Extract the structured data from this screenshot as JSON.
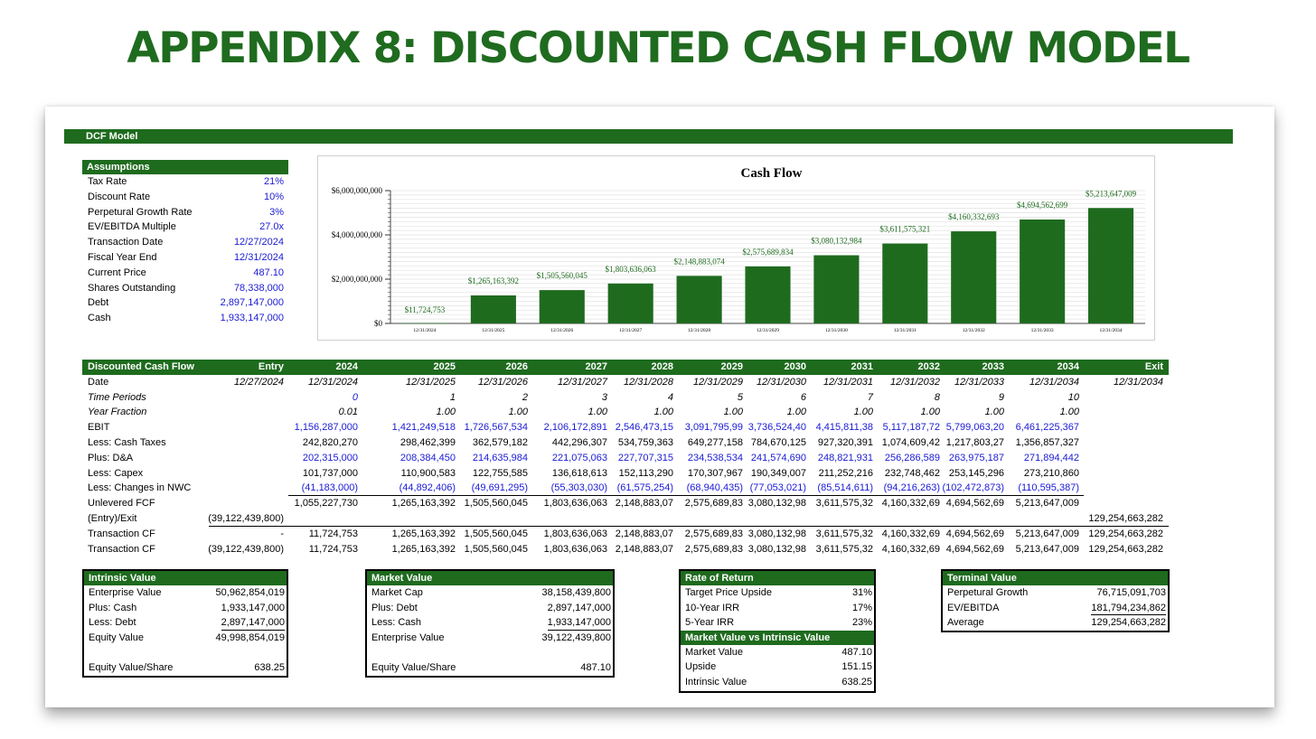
{
  "title": "APPENDIX 8: DISCOUNTED CASH FLOW MODEL",
  "banner": "DCF Model",
  "assumptions": {
    "header": "Assumptions",
    "rows": [
      {
        "label": "Tax Rate",
        "value": "21%"
      },
      {
        "label": "Discount Rate",
        "value": "10%"
      },
      {
        "label": "Perpetural Growth Rate",
        "value": "3%"
      },
      {
        "label": "EV/EBITDA Multiple",
        "value": "27.0x"
      },
      {
        "label": "Transaction Date",
        "value": "12/27/2024"
      },
      {
        "label": "Fiscal Year End",
        "value": "12/31/2024"
      },
      {
        "label": "Current Price",
        "value": "487.10"
      },
      {
        "label": "Shares Outstanding",
        "value": "78,338,000"
      },
      {
        "label": "Debt",
        "value": "2,897,147,000"
      },
      {
        "label": "Cash",
        "value": "1,933,147,000"
      }
    ]
  },
  "chart_data": {
    "type": "bar",
    "title": "Cash Flow",
    "categories": [
      "12/31/2024",
      "12/31/2025",
      "12/31/2026",
      "12/31/2027",
      "12/31/2028",
      "12/31/2029",
      "12/31/2030",
      "12/31/2031",
      "12/31/2032",
      "12/31/2033",
      "12/31/2034"
    ],
    "values": [
      11724753,
      1265163392,
      1505560045,
      1803636063,
      2148883074,
      2575689834,
      3080132984,
      3611575321,
      4160332693,
      4694562699,
      5213647009
    ],
    "data_labels": [
      "$11,724,753",
      "$1,265,163,392",
      "$1,505,560,045",
      "$1,803,636,063",
      "$2,148,883,074",
      "$2,575,689,834",
      "$3,080,132,984",
      "$3,611,575,321",
      "$4,160,332,693",
      "$4,694,562,699",
      "$5,213,647,009"
    ],
    "y_ticks": [
      0,
      2000000000,
      4000000000,
      6000000000
    ],
    "y_tick_labels": [
      "$0",
      "$2,000,000,000",
      "$4,000,000,000",
      "$6,000,000,000"
    ],
    "ylim": [
      0,
      6000000000
    ],
    "grid": true,
    "bar_color": "#1e6b1e",
    "label_color": "#1e6b1e"
  },
  "dcf": {
    "header": [
      "Discounted Cash Flow",
      "Entry",
      "2024",
      "2025",
      "2026",
      "2027",
      "2028",
      "2029",
      "2030",
      "2031",
      "2032",
      "2033",
      "2034",
      "Exit"
    ],
    "rows": [
      {
        "label": "Date",
        "style": "italic",
        "color": "black",
        "cells": [
          "12/27/2024",
          "12/31/2024",
          "12/31/2025",
          "12/31/2026",
          "12/31/2027",
          "12/31/2028",
          "12/31/2029",
          "12/31/2030",
          "12/31/2031",
          "12/31/2032",
          "12/31/2033",
          "12/31/2034",
          "12/31/2034"
        ]
      },
      {
        "label": "Time Periods",
        "label_italic": true,
        "style": "italic",
        "color": "mixed",
        "cells": [
          "",
          "0",
          "1",
          "2",
          "3",
          "4",
          "5",
          "6",
          "7",
          "8",
          "9",
          "10",
          ""
        ]
      },
      {
        "label": "Year Fraction",
        "label_italic": true,
        "style": "italic",
        "color": "black",
        "cells": [
          "",
          "0.01",
          "1.00",
          "1.00",
          "1.00",
          "1.00",
          "1.00",
          "1.00",
          "1.00",
          "1.00",
          "1.00",
          "1.00",
          ""
        ]
      },
      {
        "label": "EBIT",
        "color": "blue",
        "cells": [
          "",
          "1,156,287,000",
          "1,421,249,518",
          "1,726,567,534",
          "2,106,172,891",
          "2,546,473,15",
          "3,091,795,99",
          "3,736,524,40",
          "4,415,811,38",
          "5,117,187,72",
          "5,799,063,20",
          "6,461,225,367",
          ""
        ]
      },
      {
        "label": "Less: Cash Taxes",
        "color": "black",
        "cells": [
          "",
          "242,820,270",
          "298,462,399",
          "362,579,182",
          "442,296,307",
          "534,759,363",
          "649,277,158",
          "784,670,125",
          "927,320,391",
          "1,074,609,42",
          "1,217,803,27",
          "1,356,857,327",
          ""
        ]
      },
      {
        "label": "Plus: D&A",
        "color": "blue",
        "cells": [
          "",
          "202,315,000",
          "208,384,450",
          "214,635,984",
          "221,075,063",
          "227,707,315",
          "234,538,534",
          "241,574,690",
          "248,821,931",
          "256,286,589",
          "263,975,187",
          "271,894,442",
          ""
        ]
      },
      {
        "label": "Less: Capex",
        "color": "black",
        "cells": [
          "",
          "101,737,000",
          "110,900,583",
          "122,755,585",
          "136,618,613",
          "152,113,290",
          "170,307,967",
          "190,349,007",
          "211,252,216",
          "232,748,462",
          "253,145,296",
          "273,210,860",
          ""
        ]
      },
      {
        "label": "Less: Changes in NWC",
        "color": "blue",
        "underline": true,
        "cells": [
          "",
          "(41,183,000)",
          "(44,892,406)",
          "(49,691,295)",
          "(55,303,030)",
          "(61,575,254)",
          "(68,940,435)",
          "(77,053,021)",
          "(85,514,611)",
          "(94,216,263)",
          "(102,472,873)",
          "(110,595,387)",
          ""
        ]
      },
      {
        "label": "Unlevered FCF",
        "color": "black",
        "cells": [
          "",
          "1,055,227,730",
          "1,265,163,392",
          "1,505,560,045",
          "1,803,636,063",
          "2,148,883,07",
          "2,575,689,83",
          "3,080,132,98",
          "3,611,575,32",
          "4,160,332,69",
          "4,694,562,69",
          "5,213,647,009",
          ""
        ]
      },
      {
        "label": "(Entry)/Exit",
        "color": "black",
        "underline": true,
        "cells": [
          "(39,122,439,800)",
          "",
          "",
          "",
          "",
          "",
          "",
          "",
          "",
          "",
          "",
          "",
          "129,254,663,282"
        ]
      },
      {
        "label": "Transaction CF",
        "color": "black",
        "cells": [
          "-",
          "11,724,753",
          "1,265,163,392",
          "1,505,560,045",
          "1,803,636,063",
          "2,148,883,07",
          "2,575,689,83",
          "3,080,132,98",
          "3,611,575,32",
          "4,160,332,69",
          "4,694,562,69",
          "5,213,647,009",
          "129,254,663,282"
        ]
      },
      {
        "label": "Transaction CF",
        "color": "black",
        "cells": [
          "(39,122,439,800)",
          "11,724,753",
          "1,265,163,392",
          "1,505,560,045",
          "1,803,636,063",
          "2,148,883,07",
          "2,575,689,83",
          "3,080,132,98",
          "3,611,575,32",
          "4,160,332,69",
          "4,694,562,69",
          "5,213,647,009",
          "129,254,663,282"
        ]
      }
    ]
  },
  "intrinsic_value": {
    "header": "Intrinsic Value",
    "rows": [
      {
        "label": "Enterprise Value",
        "value": "50,962,854,019"
      },
      {
        "label": "Plus: Cash",
        "value": "1,933,147,000"
      },
      {
        "label": "Less: Debt",
        "value": "2,897,147,000"
      },
      {
        "label": "Equity Value",
        "value": "49,998,854,019"
      },
      {
        "label": "",
        "value": ""
      },
      {
        "label": "Equity Value/Share",
        "value": "638.25"
      }
    ]
  },
  "market_value": {
    "header": "Market Value",
    "rows": [
      {
        "label": "Market Cap",
        "value": "38,158,439,800"
      },
      {
        "label": "Plus: Debt",
        "value": "2,897,147,000"
      },
      {
        "label": "Less: Cash",
        "value": "1,933,147,000"
      },
      {
        "label": "Enterprise Value",
        "value": "39,122,439,800"
      },
      {
        "label": "",
        "value": ""
      },
      {
        "label": "Equity Value/Share",
        "value": "487.10"
      }
    ]
  },
  "rate_of_return": {
    "header": "Rate of Return",
    "rows": [
      {
        "label": "Target Price Upside",
        "value": "31%"
      },
      {
        "label": "10-Year IRR",
        "value": "17%"
      },
      {
        "label": "5-Year IRR",
        "value": "23%"
      }
    ],
    "sub_header": "Market Value vs Intrinsic Value",
    "sub_rows": [
      {
        "label": "Market Value",
        "value": "487.10"
      },
      {
        "label": "Upside",
        "value": "151.15"
      },
      {
        "label": "Intrinsic Value",
        "value": "638.25"
      }
    ]
  },
  "terminal_value": {
    "header": "Terminal Value",
    "rows": [
      {
        "label": "Perpetural Growth",
        "value": "76,715,091,703"
      },
      {
        "label": "EV/EBITDA",
        "value": "181,794,234,862"
      },
      {
        "label": "Average",
        "value": "129,254,663,282"
      }
    ]
  }
}
